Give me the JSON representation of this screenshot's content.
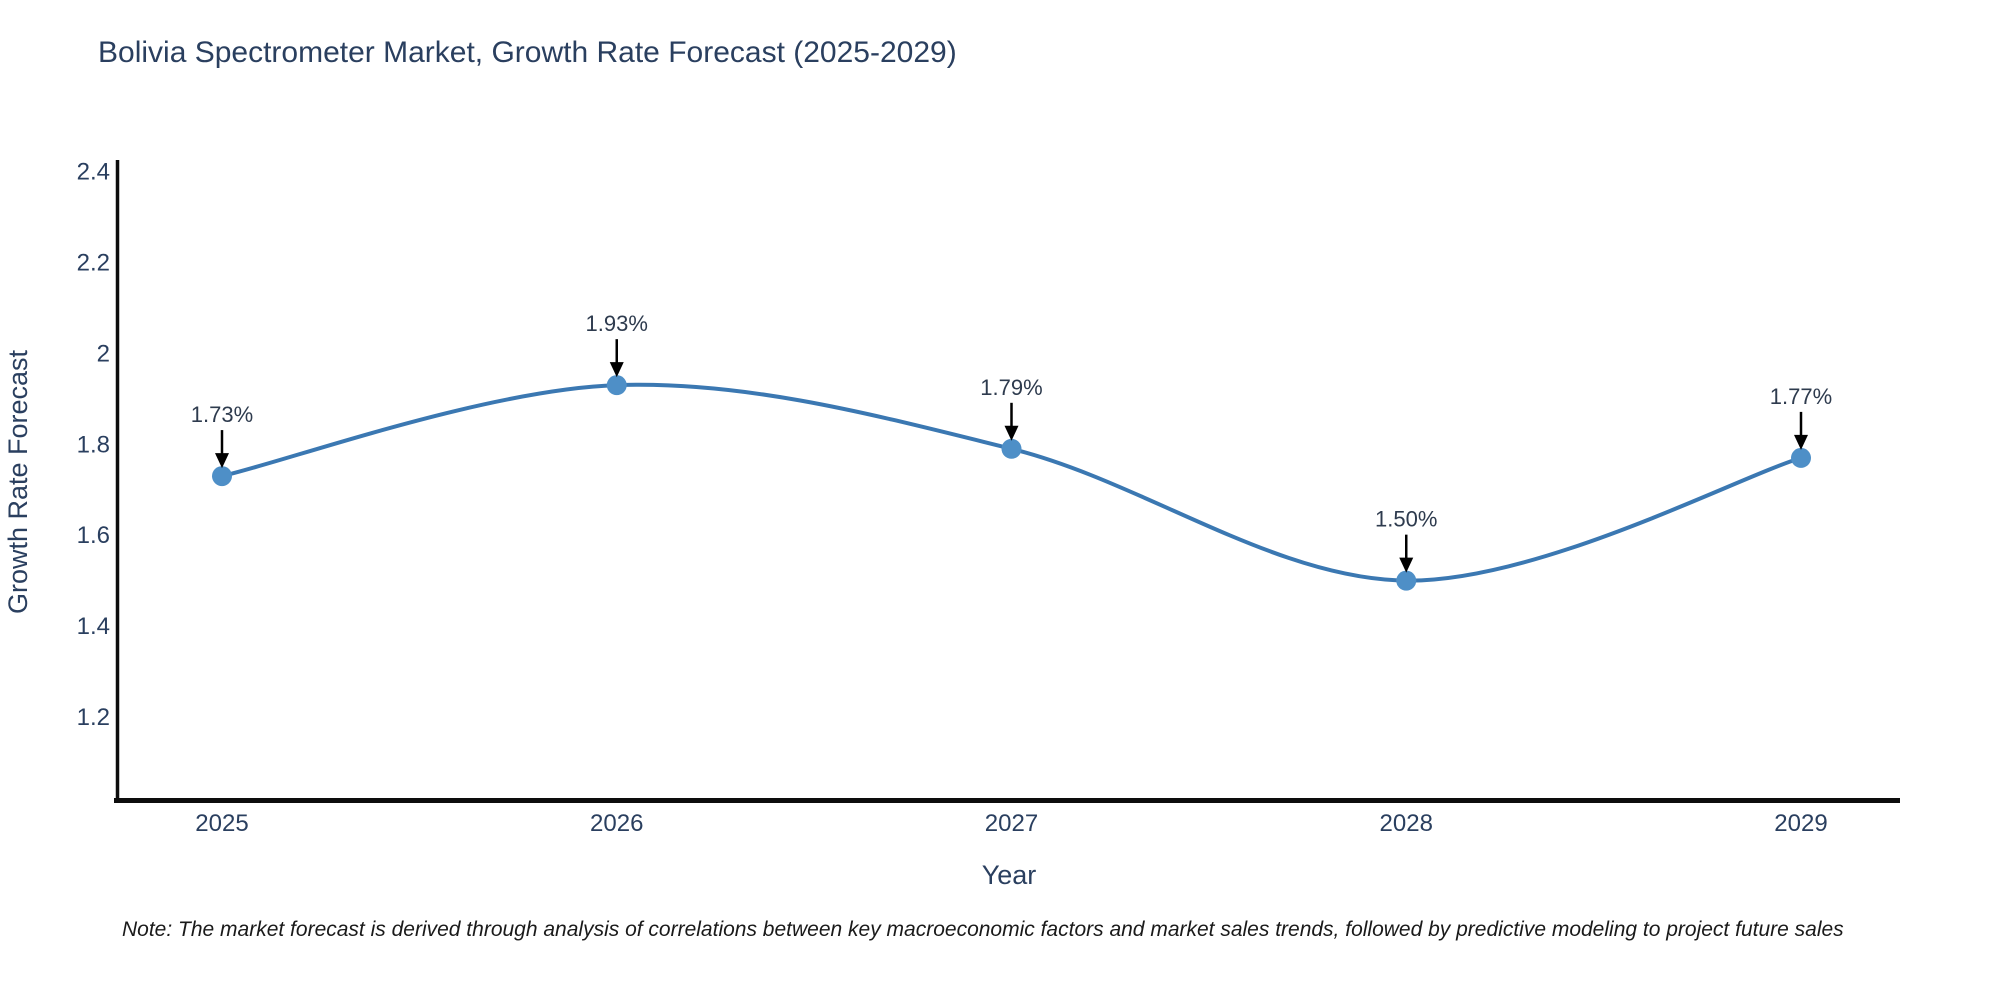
{
  "title": "Bolivia Spectrometer Market, Growth Rate Forecast (2025-2029)",
  "note": "Note: The market forecast is derived through analysis of correlations between key macroeconomic factors and market sales trends, followed by predictive modeling to project future sales",
  "chart_data": {
    "type": "line",
    "line_shape": "spline",
    "title": "Bolivia Spectrometer Market, Growth Rate Forecast (2025-2029)",
    "xlabel": "Year",
    "ylabel": "Growth Rate Forecast",
    "categories": [
      "2025",
      "2026",
      "2027",
      "2028",
      "2029"
    ],
    "series": [
      {
        "name": "Growth Rate Forecast",
        "values": [
          1.73,
          1.93,
          1.79,
          1.5,
          1.77
        ]
      }
    ],
    "point_labels": [
      "1.73%",
      "1.93%",
      "1.79%",
      "1.50%",
      "1.77%"
    ],
    "yticks": [
      "2.4",
      "2.2",
      "2",
      "1.8",
      "1.6",
      "1.4",
      "1.2"
    ],
    "ylim": [
      1.02,
      2.43
    ],
    "grid": false,
    "legend": "none",
    "annotation_arrows": true,
    "colors": {
      "line": "#3b78b2",
      "marker": "#4e8fc7",
      "text": "#2a3f5f",
      "annotation_text": "#2e3b4e",
      "arrow": "#000000",
      "axis": "#0d0d0d",
      "background": "#ffffff"
    }
  }
}
